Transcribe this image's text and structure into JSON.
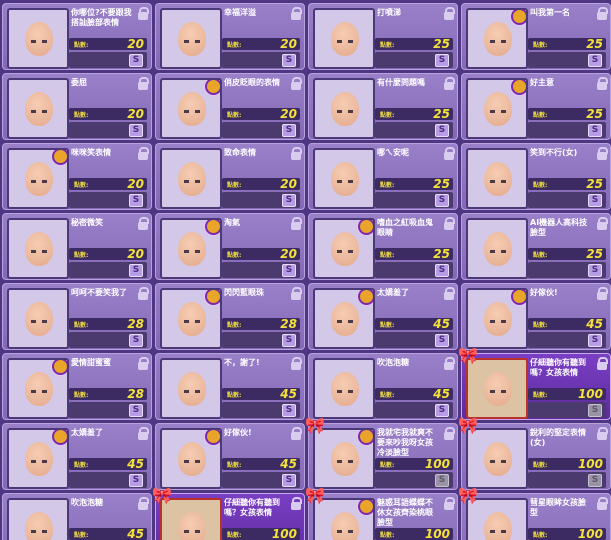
{
  "price_label": "點數:",
  "purchase_button_label": "S",
  "icons": {
    "lock": "unlock-icon",
    "badge": "special-badge-icon",
    "ribbon": "gift-ribbon-icon",
    "purchase": "s-purchase-icon"
  },
  "colors": {
    "background": "#4f3682",
    "card": "#8e72c0",
    "price_text": "#f5e23a",
    "highlight_card": "#6a2fb0"
  },
  "items": [
    {
      "name": "你哪位?不要跟我搭訕臉部表情",
      "price": "20",
      "badge": false,
      "ribbon": false,
      "highlighted": false,
      "purchase_enabled": true
    },
    {
      "name": "幸福洋溢",
      "price": "20",
      "badge": false,
      "ribbon": false,
      "highlighted": false,
      "purchase_enabled": true
    },
    {
      "name": "打噴涕",
      "price": "25",
      "badge": false,
      "ribbon": false,
      "highlighted": false,
      "purchase_enabled": true
    },
    {
      "name": "叫我第一名",
      "price": "25",
      "badge": true,
      "ribbon": false,
      "highlighted": false,
      "purchase_enabled": true
    },
    {
      "name": "委屈",
      "price": "20",
      "badge": false,
      "ribbon": false,
      "highlighted": false,
      "purchase_enabled": true
    },
    {
      "name": "俏皮眨眼的表情",
      "price": "20",
      "badge": true,
      "ribbon": false,
      "highlighted": false,
      "purchase_enabled": true
    },
    {
      "name": "有什麼問題嗎",
      "price": "25",
      "badge": false,
      "ribbon": false,
      "highlighted": false,
      "purchase_enabled": true
    },
    {
      "name": "好主意",
      "price": "25",
      "badge": true,
      "ribbon": false,
      "highlighted": false,
      "purchase_enabled": true
    },
    {
      "name": "咪咪笑表情",
      "price": "20",
      "badge": true,
      "ribbon": false,
      "highlighted": false,
      "purchase_enabled": true
    },
    {
      "name": "致命表情",
      "price": "20",
      "badge": false,
      "ribbon": false,
      "highlighted": false,
      "purchase_enabled": true
    },
    {
      "name": "哪ㄟ安呢",
      "price": "25",
      "badge": false,
      "ribbon": false,
      "highlighted": false,
      "purchase_enabled": true
    },
    {
      "name": "笑到不行(女)",
      "price": "25",
      "badge": false,
      "ribbon": false,
      "highlighted": false,
      "purchase_enabled": true
    },
    {
      "name": "秘密微笑",
      "price": "20",
      "badge": false,
      "ribbon": false,
      "highlighted": false,
      "purchase_enabled": true
    },
    {
      "name": "淘氣",
      "price": "20",
      "badge": true,
      "ribbon": false,
      "highlighted": false,
      "purchase_enabled": true
    },
    {
      "name": "嗜血之紅吸血鬼眼睛",
      "price": "25",
      "badge": true,
      "ribbon": false,
      "highlighted": false,
      "purchase_enabled": true
    },
    {
      "name": "AI機器人高科技臉型",
      "price": "25",
      "badge": false,
      "ribbon": false,
      "highlighted": false,
      "purchase_enabled": true
    },
    {
      "name": "呵呵不要笑我了",
      "price": "28",
      "badge": false,
      "ribbon": false,
      "highlighted": false,
      "purchase_enabled": true
    },
    {
      "name": "閃閃藍眼珠",
      "price": "28",
      "badge": true,
      "ribbon": false,
      "highlighted": false,
      "purchase_enabled": true
    },
    {
      "name": "太嬌羞了",
      "price": "45",
      "badge": true,
      "ribbon": false,
      "highlighted": false,
      "purchase_enabled": true
    },
    {
      "name": "好傢伙!",
      "price": "45",
      "badge": true,
      "ribbon": false,
      "highlighted": false,
      "purchase_enabled": true
    },
    {
      "name": "愛情甜蜜蜜",
      "price": "28",
      "badge": true,
      "ribbon": false,
      "highlighted": false,
      "purchase_enabled": true
    },
    {
      "name": "不，謝了!",
      "price": "45",
      "badge": false,
      "ribbon": false,
      "highlighted": false,
      "purchase_enabled": true
    },
    {
      "name": "吹泡泡糖",
      "price": "45",
      "badge": false,
      "ribbon": false,
      "highlighted": false,
      "purchase_enabled": true
    },
    {
      "name": "仔細聽你有聽到嗎？女孩表情",
      "price": "100",
      "badge": false,
      "ribbon": true,
      "highlighted": true,
      "purchase_enabled": false
    },
    {
      "name": "太嬌羞了",
      "price": "45",
      "badge": true,
      "ribbon": false,
      "highlighted": false,
      "purchase_enabled": true
    },
    {
      "name": "好傢伙!",
      "price": "45",
      "badge": true,
      "ribbon": false,
      "highlighted": false,
      "purchase_enabled": true
    },
    {
      "name": "我就宅我就爽不要來吵我呀女孩冷淡臉型",
      "price": "100",
      "badge": true,
      "ribbon": true,
      "highlighted": false,
      "purchase_enabled": false
    },
    {
      "name": "銳利的堅定表情(女)",
      "price": "100",
      "badge": false,
      "ribbon": true,
      "highlighted": false,
      "purchase_enabled": false
    },
    {
      "name": "吹泡泡糖",
      "price": "45",
      "badge": false,
      "ribbon": false,
      "highlighted": false,
      "purchase_enabled": true
    },
    {
      "name": "仔細聽你有聽到嗎？女孩表情",
      "price": "100",
      "badge": false,
      "ribbon": true,
      "highlighted": true,
      "purchase_enabled": false
    },
    {
      "name": "魅惑耳語蝶蝶不休女孩齊染桃眼臉型",
      "price": "100",
      "badge": true,
      "ribbon": true,
      "highlighted": false,
      "purchase_enabled": false
    },
    {
      "name": "彗星眼眸女孩臉型",
      "price": "100",
      "badge": false,
      "ribbon": true,
      "highlighted": false,
      "purchase_enabled": false
    }
  ]
}
